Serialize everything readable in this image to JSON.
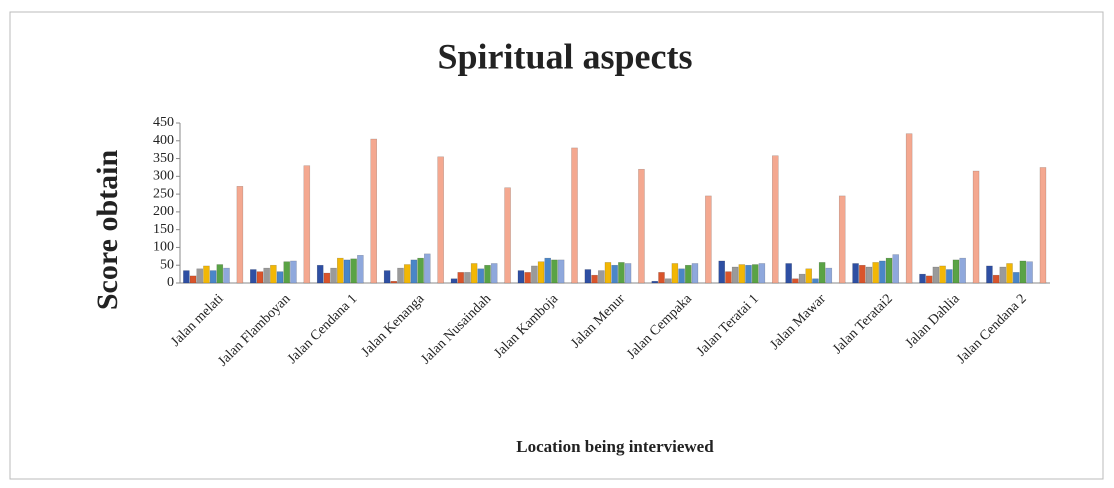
{
  "chart_data": {
    "type": "bar",
    "title": "Spiritual aspects",
    "xlabel": "Location being interviewed",
    "ylabel": "Score obtain",
    "categories": [
      "Jalan melati",
      "Jalan Flamboyan",
      "Jalan Cendana 1",
      "Jalan Kenanga",
      "Jalan Nusaindah",
      "Jalan Kamboja",
      "Jalan Menur",
      "Jalan Cempaka",
      "Jalan Teratai 1",
      "Jalan Mawar",
      "Jalan Teratai2",
      "Jalan Dahlia",
      "Jalan Cendana 2"
    ],
    "series": [
      {
        "color": "#2e4fa3",
        "values": [
          35,
          38,
          50,
          35,
          12,
          35,
          38,
          5,
          62,
          55,
          55,
          25,
          48
        ]
      },
      {
        "color": "#d9542b",
        "values": [
          20,
          32,
          28,
          5,
          30,
          30,
          22,
          30,
          32,
          12,
          50,
          20,
          22
        ]
      },
      {
        "color": "#9a9a9a",
        "values": [
          40,
          42,
          42,
          42,
          30,
          48,
          35,
          12,
          45,
          25,
          45,
          45,
          45
        ]
      },
      {
        "color": "#f2b705",
        "values": [
          48,
          50,
          70,
          52,
          55,
          60,
          58,
          55,
          52,
          40,
          58,
          48,
          55
        ]
      },
      {
        "color": "#4a86c8",
        "values": [
          35,
          32,
          65,
          65,
          40,
          70,
          50,
          40,
          50,
          12,
          62,
          38,
          30
        ]
      },
      {
        "color": "#5aa345",
        "values": [
          52,
          60,
          68,
          70,
          50,
          65,
          58,
          50,
          52,
          58,
          70,
          65,
          62
        ]
      },
      {
        "color": "#8fa8dc",
        "values": [
          42,
          62,
          78,
          82,
          55,
          65,
          55,
          55,
          55,
          42,
          80,
          70,
          60
        ]
      },
      {
        "color": "#f4a890",
        "values": [
          272,
          330,
          405,
          355,
          268,
          380,
          320,
          245,
          358,
          245,
          420,
          315,
          325
        ]
      }
    ],
    "ylim": [
      0,
      450
    ],
    "yticks": [
      0,
      50,
      100,
      150,
      200,
      250,
      300,
      350,
      400,
      450
    ]
  }
}
